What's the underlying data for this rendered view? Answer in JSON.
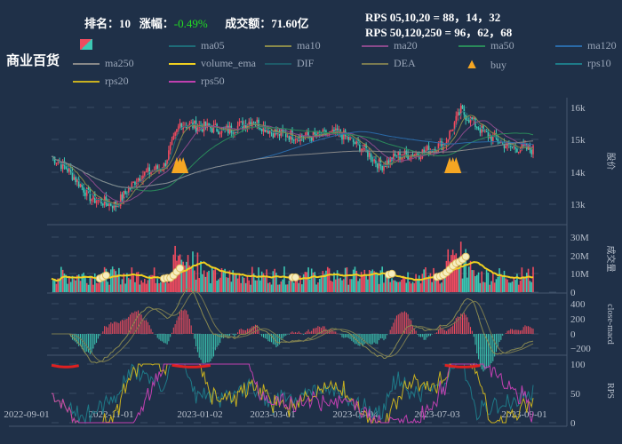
{
  "header": {
    "rank_label": "排名：",
    "rank": "10",
    "change_label": "涨幅：",
    "change": "-0.49%",
    "amount_label": "成交额：",
    "amount": "71.60亿",
    "rps_line1": "RPS 05,10,20 = 88，14，32",
    "rps_line2": "RPS 50,120,250 = 96，62，68"
  },
  "title": "商业百货",
  "legend": [
    {
      "label": "",
      "color": "#ef4b5f",
      "type": "candle"
    },
    {
      "label": "ma05",
      "color": "#1e6b78"
    },
    {
      "label": "ma10",
      "color": "#8a8a4a"
    },
    {
      "label": "ma20",
      "color": "#8a4a8a"
    },
    {
      "label": "ma50",
      "color": "#2a8a5a"
    },
    {
      "label": "ma120",
      "color": "#2a6aa8"
    },
    {
      "label": "ma250",
      "color": "#888888"
    },
    {
      "label": "volume_ema",
      "color": "#f0d020"
    },
    {
      "label": "DIF",
      "color": "#1e5a68"
    },
    {
      "label": "DEA",
      "color": "#7a7a50"
    },
    {
      "label": "buy",
      "color": "#f5a623",
      "type": "arrow"
    },
    {
      "label": "rps10",
      "color": "#1e7a88"
    },
    {
      "label": "rps20",
      "color": "#c8b020"
    },
    {
      "label": "rps50",
      "color": "#c040b0"
    }
  ],
  "chart_data": {
    "type": "candlestick",
    "x_ticks": [
      "2022-09-01",
      "2022-11-01",
      "2023-01-02",
      "2023-03-01",
      "2023-05-04",
      "2023-07-03",
      "2023-09-01"
    ],
    "panels": [
      {
        "name": "price",
        "ylabel": "股价",
        "ticks": [
          "16k",
          "15k",
          "14k",
          "13k"
        ],
        "ylim": [
          12500,
          16400
        ],
        "close_keypoints": [
          [
            0,
            14600
          ],
          [
            10,
            14200
          ],
          [
            25,
            13300
          ],
          [
            40,
            13100
          ],
          [
            55,
            14000
          ],
          [
            70,
            14300
          ],
          [
            80,
            15600
          ],
          [
            95,
            15500
          ],
          [
            110,
            15400
          ],
          [
            125,
            15700
          ],
          [
            140,
            15300
          ],
          [
            160,
            15200
          ],
          [
            180,
            15300
          ],
          [
            195,
            14800
          ],
          [
            205,
            14300
          ],
          [
            215,
            14600
          ],
          [
            230,
            14700
          ],
          [
            245,
            15000
          ],
          [
            255,
            16000
          ],
          [
            270,
            15300
          ],
          [
            285,
            14900
          ],
          [
            300,
            14800
          ]
        ]
      },
      {
        "name": "volume",
        "ylabel": "成交量",
        "ticks": [
          "30M",
          "20M",
          "10M",
          "0"
        ],
        "ylim": [
          0,
          35
        ]
      },
      {
        "name": "macd",
        "ylabel": "close-macd",
        "ticks": [
          "400",
          "200",
          "0",
          "−200"
        ],
        "ylim": [
          -300,
          450
        ]
      },
      {
        "name": "rps",
        "ylabel": "RPS",
        "ticks": [
          "100",
          "50",
          "0"
        ],
        "ylim": [
          -5,
          105
        ]
      }
    ]
  }
}
